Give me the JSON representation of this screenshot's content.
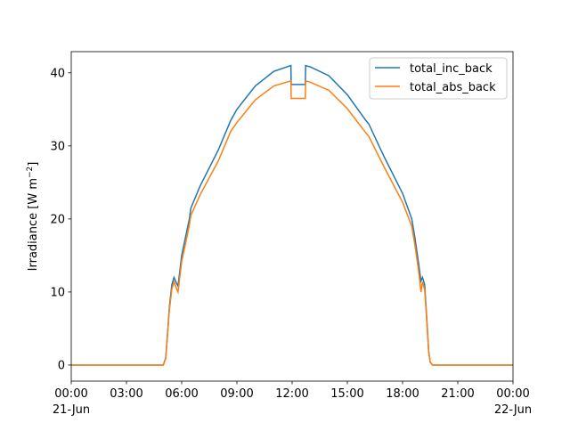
{
  "chart_data": {
    "type": "line",
    "ylabel": "Irradiance [W m$^{-2}$]",
    "ylabel_text": "Irradiance [W m",
    "ylabel_sup": "−2",
    "ylabel_close": "]",
    "ylim": [
      -2.2,
      42.9
    ],
    "xlim": [
      "2021-06-21 00:00",
      "2021-06-22 00:00"
    ],
    "yticks": [
      0,
      10,
      20,
      30,
      40
    ],
    "xticks": [
      {
        "h": 0,
        "label": "00:00",
        "sub": "21-Jun"
      },
      {
        "h": 3,
        "label": "03:00",
        "sub": ""
      },
      {
        "h": 6,
        "label": "06:00",
        "sub": ""
      },
      {
        "h": 9,
        "label": "09:00",
        "sub": ""
      },
      {
        "h": 12,
        "label": "12:00",
        "sub": ""
      },
      {
        "h": 15,
        "label": "15:00",
        "sub": ""
      },
      {
        "h": 18,
        "label": "18:00",
        "sub": ""
      },
      {
        "h": 21,
        "label": "21:00",
        "sub": ""
      },
      {
        "h": 24,
        "label": "00:00",
        "sub": "22-Jun"
      }
    ],
    "legend": "upper right",
    "x": [
      "00:00",
      "05:00",
      "05:08",
      "05:15",
      "05:20",
      "05:28",
      "05:35",
      "05:42",
      "05:48",
      "06:00",
      "06:15",
      "06:25",
      "06:30",
      "07:00",
      "08:00",
      "08:40",
      "09:00",
      "10:00",
      "11:00",
      "11:56",
      "11:57",
      "12:43",
      "12:44",
      "13:00",
      "14:00",
      "15:00",
      "16:00",
      "16:10",
      "17:00",
      "18:00",
      "18:30",
      "18:40",
      "18:52",
      "19:00",
      "19:05",
      "19:12",
      "19:18",
      "19:25",
      "19:30",
      "19:38",
      "24:00"
    ],
    "series": [
      {
        "name": "total_inc_back",
        "color": "#1f77b4",
        "values": [
          0,
          0,
          1,
          5,
          8,
          11,
          12,
          11.3,
          10.8,
          15,
          18,
          20,
          21.5,
          24.5,
          29.5,
          33.5,
          35,
          38.2,
          40.2,
          41,
          38.4,
          38.4,
          41,
          40.8,
          39.6,
          37,
          33.5,
          33,
          28.5,
          23.5,
          20,
          17.5,
          14,
          11.5,
          12,
          11,
          7,
          2,
          0.4,
          0,
          0
        ]
      },
      {
        "name": "total_abs_back",
        "color": "#ff7f0e",
        "values": [
          0,
          0,
          0.9,
          4.7,
          7.6,
          10.4,
          11.4,
          10.6,
          10,
          14.2,
          17.1,
          19.2,
          20.5,
          23.3,
          28,
          32,
          33.2,
          36.3,
          38.2,
          38.9,
          36.5,
          36.5,
          38.9,
          38.7,
          37.6,
          35.1,
          31.8,
          31.3,
          27.1,
          22.3,
          19,
          16.5,
          13,
          10,
          11.4,
          10.3,
          6.6,
          1.9,
          0.4,
          0,
          0
        ]
      }
    ]
  }
}
